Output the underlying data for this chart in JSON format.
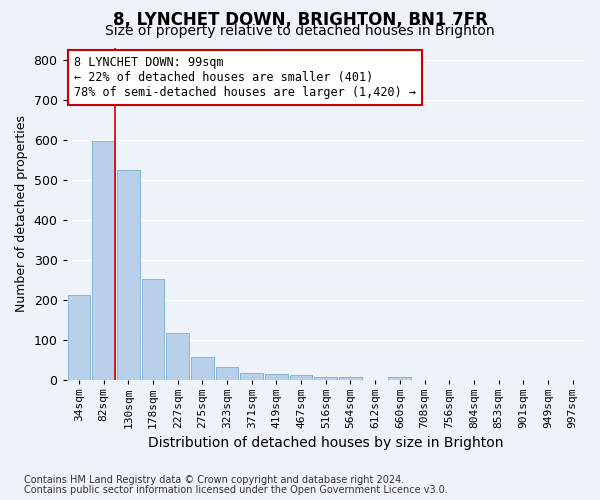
{
  "title": "8, LYNCHET DOWN, BRIGHTON, BN1 7FR",
  "subtitle": "Size of property relative to detached houses in Brighton",
  "xlabel": "Distribution of detached houses by size in Brighton",
  "ylabel": "Number of detached properties",
  "footnote1": "Contains HM Land Registry data © Crown copyright and database right 2024.",
  "footnote2": "Contains public sector information licensed under the Open Government Licence v3.0.",
  "categories": [
    "34sqm",
    "82sqm",
    "130sqm",
    "178sqm",
    "227sqm",
    "275sqm",
    "323sqm",
    "371sqm",
    "419sqm",
    "467sqm",
    "516sqm",
    "564sqm",
    "612sqm",
    "660sqm",
    "708sqm",
    "756sqm",
    "804sqm",
    "853sqm",
    "901sqm",
    "949sqm",
    "997sqm"
  ],
  "values": [
    213,
    598,
    525,
    252,
    118,
    58,
    33,
    17,
    15,
    14,
    8,
    9,
    0,
    9,
    0,
    0,
    0,
    0,
    0,
    0,
    0
  ],
  "bar_color": "#b8d0ea",
  "bar_edge_color": "#7aafd4",
  "property_line_x": 1.45,
  "property_line_color": "#cc0000",
  "annotation_text": "8 LYNCHET DOWN: 99sqm\n← 22% of detached houses are smaller (401)\n78% of semi-detached houses are larger (1,420) →",
  "annotation_box_facecolor": "#ffffff",
  "annotation_box_edgecolor": "#cc0000",
  "ylim": [
    0,
    830
  ],
  "yticks": [
    0,
    100,
    200,
    300,
    400,
    500,
    600,
    700,
    800
  ],
  "background_color": "#eef2f9",
  "grid_color": "#ffffff",
  "title_fontsize": 12,
  "subtitle_fontsize": 10,
  "ylabel_fontsize": 9,
  "xlabel_fontsize": 10,
  "tick_fontsize": 8,
  "annotation_fontsize": 8.5,
  "footnote_fontsize": 7
}
